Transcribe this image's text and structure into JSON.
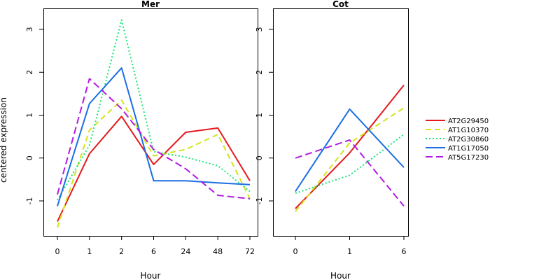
{
  "figure": {
    "ylabel": "centered expression"
  },
  "chart_data": [
    {
      "type": "line",
      "title": "Mer",
      "xlabel": "Hour",
      "ylabel": "centered expression",
      "categories": [
        "0",
        "1",
        "2",
        "6",
        "24",
        "48",
        "72"
      ],
      "yticks": [
        -1,
        0,
        1,
        2,
        3
      ],
      "ylim": [
        -1.8,
        3.4
      ],
      "grid": false,
      "series": [
        {
          "name": "AT2G29450",
          "color": "#e41a1c",
          "dash": "solid",
          "values": [
            -1.48,
            0.1,
            0.97,
            -0.15,
            0.6,
            0.7,
            -0.53
          ]
        },
        {
          "name": "AT1G10370",
          "color": "#d4e41a",
          "dash": "dashed",
          "values": [
            -1.62,
            0.65,
            1.35,
            0.05,
            0.2,
            0.55,
            -0.95
          ]
        },
        {
          "name": "AT2G30860",
          "color": "#1ae476",
          "dash": "dotted",
          "values": [
            -0.98,
            0.3,
            3.22,
            0.15,
            0.02,
            -0.18,
            -0.78
          ]
        },
        {
          "name": "AT1G17050",
          "color": "#1a6ee4",
          "dash": "solid",
          "values": [
            -1.12,
            1.27,
            2.1,
            -0.53,
            -0.53,
            -0.58,
            -0.62
          ]
        },
        {
          "name": "AT5G17230",
          "color": "#b21ae4",
          "dash": "longdash",
          "values": [
            -0.85,
            1.85,
            1.15,
            0.2,
            -0.25,
            -0.87,
            -0.95
          ]
        }
      ]
    },
    {
      "type": "line",
      "title": "Cot",
      "xlabel": "Hour",
      "ylabel": "",
      "categories": [
        "0",
        "1",
        "6"
      ],
      "yticks": [
        -1,
        0,
        1,
        2,
        3
      ],
      "ylim": [
        -1.8,
        3.4
      ],
      "grid": false,
      "series": [
        {
          "name": "AT2G29450",
          "color": "#e41a1c",
          "dash": "solid",
          "values": [
            -1.18,
            0.12,
            1.7
          ]
        },
        {
          "name": "AT1G10370",
          "color": "#d4e41a",
          "dash": "dashed",
          "values": [
            -1.25,
            0.35,
            1.17
          ]
        },
        {
          "name": "AT2G30860",
          "color": "#1ae476",
          "dash": "dotted",
          "values": [
            -0.82,
            -0.4,
            0.55
          ]
        },
        {
          "name": "AT1G17050",
          "color": "#1a6ee4",
          "dash": "solid",
          "values": [
            -0.78,
            1.14,
            -0.22
          ]
        },
        {
          "name": "AT5G17230",
          "color": "#b21ae4",
          "dash": "longdash",
          "values": [
            0.0,
            0.42,
            -1.12
          ]
        }
      ]
    }
  ],
  "legend": {
    "placement": "right",
    "entries": [
      {
        "label": "AT2G29450",
        "color": "#e41a1c",
        "dash": "solid"
      },
      {
        "label": "AT1G10370",
        "color": "#d4e41a",
        "dash": "dashed"
      },
      {
        "label": "AT2G30860",
        "color": "#1ae476",
        "dash": "dotted"
      },
      {
        "label": "AT1G17050",
        "color": "#1a6ee4",
        "dash": "solid"
      },
      {
        "label": "AT5G17230",
        "color": "#b21ae4",
        "dash": "longdash"
      }
    ]
  }
}
